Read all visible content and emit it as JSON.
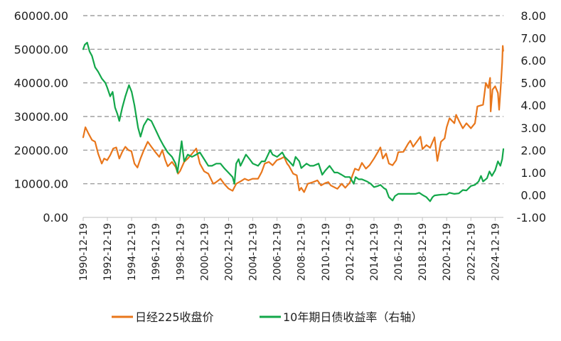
{
  "chart_data": {
    "type": "line",
    "title": "",
    "left_axis": {
      "ylim": [
        0,
        60000
      ],
      "ticks": [
        "0.00",
        "10000.00",
        "20000.00",
        "30000.00",
        "40000.00",
        "50000.00",
        "60000.00"
      ]
    },
    "right_axis": {
      "ylim": [
        -1,
        8
      ],
      "ticks": [
        "-1.00",
        "0.00",
        "1.00",
        "2.00",
        "3.00",
        "4.00",
        "5.00",
        "6.00",
        "7.00",
        "8.00"
      ]
    },
    "x_axis": {
      "range": [
        1990.97,
        2025.65
      ],
      "ticks": [
        "1990-12-19",
        "1992-12-19",
        "1994-12-19",
        "1996-12-19",
        "1998-12-19",
        "2000-12-19",
        "2002-12-19",
        "2004-12-19",
        "2006-12-19",
        "2008-12-19",
        "2010-12-19",
        "2012-12-19",
        "2014-12-19",
        "2016-12-19",
        "2018-12-19",
        "2020-12-19",
        "2022-12-19",
        "2024-12-19"
      ]
    },
    "grid": "horizontal dashed",
    "legend_position": "bottom",
    "series": [
      {
        "name": "日经225收盘价",
        "axis": "left",
        "color": "#E8761B",
        "points": [
          [
            1990.97,
            23800
          ],
          [
            1991.15,
            26800
          ],
          [
            1991.4,
            25000
          ],
          [
            1991.7,
            23000
          ],
          [
            1991.95,
            22500
          ],
          [
            1992.2,
            19000
          ],
          [
            1992.5,
            16000
          ],
          [
            1992.7,
            17500
          ],
          [
            1992.95,
            17000
          ],
          [
            1993.2,
            18500
          ],
          [
            1993.45,
            20500
          ],
          [
            1993.7,
            20800
          ],
          [
            1993.95,
            17500
          ],
          [
            1994.2,
            19500
          ],
          [
            1994.45,
            21000
          ],
          [
            1994.7,
            20000
          ],
          [
            1994.95,
            19700
          ],
          [
            1995.2,
            16000
          ],
          [
            1995.45,
            14800
          ],
          [
            1995.7,
            17500
          ],
          [
            1995.95,
            19800
          ],
          [
            1996.3,
            22500
          ],
          [
            1996.6,
            21000
          ],
          [
            1996.95,
            19300
          ],
          [
            1997.25,
            18000
          ],
          [
            1997.5,
            20000
          ],
          [
            1997.75,
            17000
          ],
          [
            1997.95,
            15200
          ],
          [
            1998.3,
            16500
          ],
          [
            1998.6,
            15000
          ],
          [
            1998.8,
            13000
          ],
          [
            1998.97,
            13800
          ],
          [
            1999.3,
            16500
          ],
          [
            1999.6,
            17500
          ],
          [
            1999.95,
            18900
          ],
          [
            2000.3,
            20500
          ],
          [
            2000.6,
            16000
          ],
          [
            2000.95,
            13700
          ],
          [
            2001.3,
            13000
          ],
          [
            2001.7,
            10000
          ],
          [
            2001.95,
            10500
          ],
          [
            2002.3,
            11500
          ],
          [
            2002.6,
            10000
          ],
          [
            2002.95,
            8600
          ],
          [
            2003.3,
            7900
          ],
          [
            2003.6,
            10000
          ],
          [
            2003.95,
            10700
          ],
          [
            2004.3,
            11500
          ],
          [
            2004.6,
            11000
          ],
          [
            2004.95,
            11500
          ],
          [
            2005.4,
            11500
          ],
          [
            2005.7,
            13500
          ],
          [
            2005.95,
            16000
          ],
          [
            2006.3,
            16500
          ],
          [
            2006.6,
            15500
          ],
          [
            2006.95,
            17000
          ],
          [
            2007.3,
            17500
          ],
          [
            2007.55,
            18000
          ],
          [
            2007.8,
            16000
          ],
          [
            2007.95,
            15300
          ],
          [
            2008.3,
            13000
          ],
          [
            2008.6,
            12500
          ],
          [
            2008.8,
            8000
          ],
          [
            2008.97,
            8800
          ],
          [
            2009.2,
            7500
          ],
          [
            2009.5,
            10000
          ],
          [
            2009.95,
            10500
          ],
          [
            2010.3,
            11000
          ],
          [
            2010.6,
            9500
          ],
          [
            2010.95,
            10200
          ],
          [
            2011.2,
            10500
          ],
          [
            2011.4,
            9500
          ],
          [
            2011.95,
            8500
          ],
          [
            2012.3,
            10000
          ],
          [
            2012.6,
            8800
          ],
          [
            2012.97,
            10300
          ],
          [
            2013.4,
            14500
          ],
          [
            2013.7,
            14000
          ],
          [
            2013.97,
            16200
          ],
          [
            2014.3,
            14500
          ],
          [
            2014.6,
            15500
          ],
          [
            2014.97,
            17500
          ],
          [
            2015.3,
            19500
          ],
          [
            2015.5,
            20800
          ],
          [
            2015.7,
            17500
          ],
          [
            2015.97,
            19000
          ],
          [
            2016.2,
            16000
          ],
          [
            2016.5,
            15500
          ],
          [
            2016.8,
            17000
          ],
          [
            2016.97,
            19400
          ],
          [
            2017.4,
            19500
          ],
          [
            2017.8,
            22000
          ],
          [
            2017.97,
            22800
          ],
          [
            2018.2,
            21000
          ],
          [
            2018.5,
            22500
          ],
          [
            2018.8,
            24000
          ],
          [
            2018.97,
            20300
          ],
          [
            2019.3,
            21500
          ],
          [
            2019.6,
            20700
          ],
          [
            2019.97,
            23800
          ],
          [
            2020.2,
            16800
          ],
          [
            2020.5,
            22500
          ],
          [
            2020.8,
            23500
          ],
          [
            2020.97,
            26800
          ],
          [
            2021.2,
            29500
          ],
          [
            2021.6,
            28000
          ],
          [
            2021.75,
            30500
          ],
          [
            2021.97,
            28800
          ],
          [
            2022.3,
            26500
          ],
          [
            2022.6,
            28000
          ],
          [
            2022.97,
            26500
          ],
          [
            2023.3,
            28000
          ],
          [
            2023.5,
            33000
          ],
          [
            2023.97,
            33500
          ],
          [
            2024.2,
            40000
          ],
          [
            2024.4,
            38500
          ],
          [
            2024.55,
            41500
          ],
          [
            2024.6,
            31500
          ],
          [
            2024.75,
            38000
          ],
          [
            2024.97,
            39000
          ],
          [
            2025.2,
            37000
          ],
          [
            2025.3,
            32000
          ],
          [
            2025.45,
            40000
          ],
          [
            2025.55,
            46000
          ],
          [
            2025.6,
            51000
          ],
          [
            2025.63,
            49500
          ]
        ]
      },
      {
        "name": "10年期日债收益率（右轴）",
        "axis": "right",
        "color": "#13A74A",
        "points": [
          [
            1990.97,
            6.5
          ],
          [
            1991.1,
            6.7
          ],
          [
            1991.3,
            6.8
          ],
          [
            1991.5,
            6.4
          ],
          [
            1991.7,
            6.2
          ],
          [
            1991.95,
            5.7
          ],
          [
            1992.2,
            5.5
          ],
          [
            1992.5,
            5.2
          ],
          [
            1992.8,
            5.0
          ],
          [
            1992.95,
            4.8
          ],
          [
            1993.2,
            4.4
          ],
          [
            1993.4,
            4.6
          ],
          [
            1993.6,
            3.9
          ],
          [
            1993.8,
            3.6
          ],
          [
            1993.95,
            3.3
          ],
          [
            1994.2,
            3.9
          ],
          [
            1994.45,
            4.4
          ],
          [
            1994.75,
            4.9
          ],
          [
            1994.97,
            4.6
          ],
          [
            1995.2,
            4.0
          ],
          [
            1995.5,
            3.0
          ],
          [
            1995.7,
            2.6
          ],
          [
            1995.97,
            3.1
          ],
          [
            1996.3,
            3.4
          ],
          [
            1996.6,
            3.3
          ],
          [
            1996.95,
            2.9
          ],
          [
            1997.3,
            2.5
          ],
          [
            1997.6,
            2.2
          ],
          [
            1997.95,
            1.9
          ],
          [
            1998.3,
            1.7
          ],
          [
            1998.6,
            1.4
          ],
          [
            1998.75,
            1.0
          ],
          [
            1998.95,
            1.8
          ],
          [
            1999.1,
            2.4
          ],
          [
            1999.3,
            1.5
          ],
          [
            1999.6,
            1.8
          ],
          [
            1999.95,
            1.7
          ],
          [
            2000.3,
            1.8
          ],
          [
            2000.6,
            1.9
          ],
          [
            2000.95,
            1.6
          ],
          [
            2001.3,
            1.3
          ],
          [
            2001.6,
            1.3
          ],
          [
            2001.95,
            1.4
          ],
          [
            2002.3,
            1.4
          ],
          [
            2002.6,
            1.2
          ],
          [
            2002.95,
            1.0
          ],
          [
            2003.3,
            0.8
          ],
          [
            2003.45,
            0.5
          ],
          [
            2003.6,
            1.4
          ],
          [
            2003.8,
            1.6
          ],
          [
            2003.95,
            1.3
          ],
          [
            2004.4,
            1.8
          ],
          [
            2004.7,
            1.6
          ],
          [
            2004.97,
            1.4
          ],
          [
            2005.4,
            1.3
          ],
          [
            2005.7,
            1.5
          ],
          [
            2005.97,
            1.5
          ],
          [
            2006.4,
            2.0
          ],
          [
            2006.6,
            1.8
          ],
          [
            2006.97,
            1.7
          ],
          [
            2007.4,
            1.9
          ],
          [
            2007.6,
            1.7
          ],
          [
            2007.97,
            1.5
          ],
          [
            2008.3,
            1.3
          ],
          [
            2008.5,
            1.7
          ],
          [
            2008.8,
            1.5
          ],
          [
            2008.97,
            1.2
          ],
          [
            2009.4,
            1.4
          ],
          [
            2009.7,
            1.3
          ],
          [
            2009.97,
            1.3
          ],
          [
            2010.4,
            1.4
          ],
          [
            2010.7,
            0.9
          ],
          [
            2010.97,
            1.1
          ],
          [
            2011.3,
            1.3
          ],
          [
            2011.7,
            1.0
          ],
          [
            2011.97,
            1.0
          ],
          [
            2012.3,
            0.9
          ],
          [
            2012.6,
            0.8
          ],
          [
            2012.97,
            0.8
          ],
          [
            2013.3,
            0.5
          ],
          [
            2013.45,
            0.8
          ],
          [
            2013.7,
            0.7
          ],
          [
            2013.97,
            0.7
          ],
          [
            2014.4,
            0.6
          ],
          [
            2014.7,
            0.5
          ],
          [
            2014.97,
            0.35
          ],
          [
            2015.3,
            0.4
          ],
          [
            2015.5,
            0.45
          ],
          [
            2015.8,
            0.3
          ],
          [
            2015.97,
            0.25
          ],
          [
            2016.2,
            -0.1
          ],
          [
            2016.5,
            -0.25
          ],
          [
            2016.7,
            -0.05
          ],
          [
            2016.97,
            0.05
          ],
          [
            2017.4,
            0.05
          ],
          [
            2017.8,
            0.05
          ],
          [
            2017.97,
            0.05
          ],
          [
            2018.4,
            0.05
          ],
          [
            2018.7,
            0.1
          ],
          [
            2018.97,
            0.0
          ],
          [
            2019.3,
            -0.1
          ],
          [
            2019.6,
            -0.28
          ],
          [
            2019.8,
            -0.1
          ],
          [
            2019.97,
            -0.02
          ],
          [
            2020.3,
            0.0
          ],
          [
            2020.6,
            0.02
          ],
          [
            2020.97,
            0.02
          ],
          [
            2021.2,
            0.1
          ],
          [
            2021.6,
            0.05
          ],
          [
            2021.97,
            0.07
          ],
          [
            2022.3,
            0.22
          ],
          [
            2022.6,
            0.2
          ],
          [
            2022.97,
            0.4
          ],
          [
            2023.3,
            0.45
          ],
          [
            2023.6,
            0.6
          ],
          [
            2023.8,
            0.85
          ],
          [
            2023.97,
            0.6
          ],
          [
            2024.3,
            0.75
          ],
          [
            2024.5,
            1.05
          ],
          [
            2024.7,
            0.85
          ],
          [
            2024.97,
            1.1
          ],
          [
            2025.2,
            1.5
          ],
          [
            2025.4,
            1.3
          ],
          [
            2025.55,
            1.6
          ],
          [
            2025.65,
            2.05
          ]
        ]
      }
    ]
  }
}
